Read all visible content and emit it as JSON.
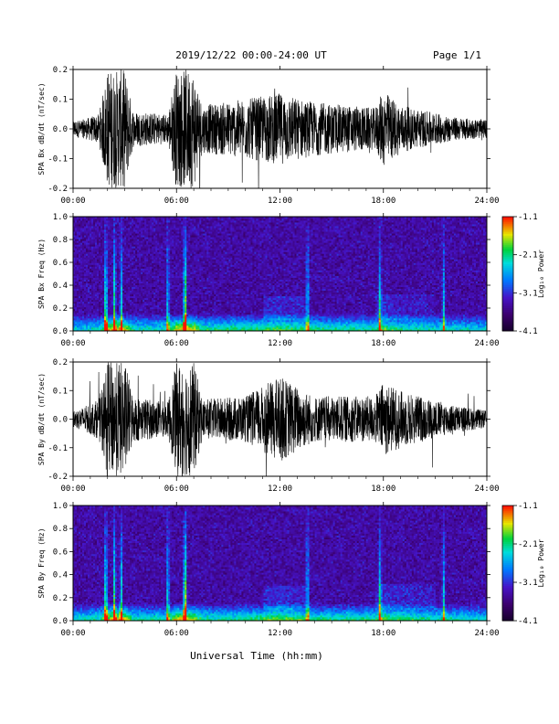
{
  "header": {
    "title": "2019/12/22  00:00-24:00 UT",
    "page": "Page 1/1"
  },
  "xlabel": "Universal Time (hh:mm)",
  "chart_data": [
    {
      "type": "line",
      "ylabel": "SPA Bx dB/dt (nT/sec)",
      "xlim": [
        0,
        24
      ],
      "ylim": [
        -0.2,
        0.2
      ],
      "xticks": [
        "00:00",
        "06:00",
        "12:00",
        "18:00",
        "24:00"
      ],
      "yticks": [
        "-0.2",
        "-0.1",
        "0.0",
        "0.1",
        "0.2"
      ],
      "envelope": [
        {
          "t": 0.0,
          "a": 0.03
        },
        {
          "t": 0.5,
          "a": 0.03
        },
        {
          "t": 1.5,
          "a": 0.05
        },
        {
          "t": 2.0,
          "a": 0.2
        },
        {
          "t": 3.0,
          "a": 0.2
        },
        {
          "t": 3.5,
          "a": 0.06
        },
        {
          "t": 5.5,
          "a": 0.05
        },
        {
          "t": 6.0,
          "a": 0.2
        },
        {
          "t": 7.0,
          "a": 0.2
        },
        {
          "t": 7.5,
          "a": 0.08
        },
        {
          "t": 10.0,
          "a": 0.1
        },
        {
          "t": 12.0,
          "a": 0.12
        },
        {
          "t": 14.0,
          "a": 0.09
        },
        {
          "t": 17.5,
          "a": 0.07
        },
        {
          "t": 18.0,
          "a": 0.13
        },
        {
          "t": 19.0,
          "a": 0.08
        },
        {
          "t": 22.0,
          "a": 0.04
        },
        {
          "t": 24.0,
          "a": 0.03
        }
      ]
    },
    {
      "type": "heatmap",
      "ylabel": "SPA Bx Freq (Hz)",
      "xlim": [
        0,
        24
      ],
      "ylim": [
        0,
        1.0
      ],
      "xticks": [
        "00:00",
        "06:00",
        "12:00",
        "18:00",
        "24:00"
      ],
      "yticks": [
        "0.0",
        "0.2",
        "0.4",
        "0.6",
        "0.8",
        "1.0"
      ],
      "colorbar": {
        "label": "Log₁₀ Power",
        "range": [
          -4.1,
          -1.1
        ],
        "ticks": [
          "-1.1",
          "-2.1",
          "-3.1",
          "-4.1"
        ]
      },
      "bright_bands": [
        {
          "t": 1.9,
          "level": 0.7
        },
        {
          "t": 2.4,
          "level": 0.6
        },
        {
          "t": 2.8,
          "level": 0.5
        },
        {
          "t": 5.5,
          "level": 0.5
        },
        {
          "t": 6.5,
          "level": 0.9
        },
        {
          "t": 13.6,
          "level": 0.5
        },
        {
          "t": 17.8,
          "level": 0.5
        },
        {
          "t": 21.5,
          "level": 0.4
        }
      ]
    },
    {
      "type": "line",
      "ylabel": "SPA By dB/dt (nT/sec)",
      "xlim": [
        0,
        24
      ],
      "ylim": [
        -0.2,
        0.2
      ],
      "xticks": [
        "00:00",
        "06:00",
        "12:00",
        "18:00",
        "24:00"
      ],
      "yticks": [
        "-0.2",
        "-0.1",
        "0.0",
        "0.1",
        "0.2"
      ],
      "envelope": [
        {
          "t": 0.0,
          "a": 0.03
        },
        {
          "t": 0.5,
          "a": 0.04
        },
        {
          "t": 1.5,
          "a": 0.07
        },
        {
          "t": 2.0,
          "a": 0.2
        },
        {
          "t": 3.0,
          "a": 0.2
        },
        {
          "t": 3.5,
          "a": 0.08
        },
        {
          "t": 5.5,
          "a": 0.06
        },
        {
          "t": 6.0,
          "a": 0.2
        },
        {
          "t": 7.0,
          "a": 0.2
        },
        {
          "t": 7.5,
          "a": 0.07
        },
        {
          "t": 10.0,
          "a": 0.08
        },
        {
          "t": 12.0,
          "a": 0.15
        },
        {
          "t": 14.0,
          "a": 0.08
        },
        {
          "t": 17.5,
          "a": 0.08
        },
        {
          "t": 18.0,
          "a": 0.13
        },
        {
          "t": 19.0,
          "a": 0.1
        },
        {
          "t": 22.0,
          "a": 0.05
        },
        {
          "t": 24.0,
          "a": 0.03
        }
      ]
    },
    {
      "type": "heatmap",
      "ylabel": "SPA By Freq (Hz)",
      "xlim": [
        0,
        24
      ],
      "ylim": [
        0,
        1.0
      ],
      "xticks": [
        "00:00",
        "06:00",
        "12:00",
        "18:00",
        "24:00"
      ],
      "yticks": [
        "0.0",
        "0.2",
        "0.4",
        "0.6",
        "0.8",
        "1.0"
      ],
      "colorbar": {
        "label": "Log₁₀ Power",
        "range": [
          -4.1,
          -1.1
        ],
        "ticks": [
          "-1.1",
          "-2.1",
          "-3.1",
          "-4.1"
        ]
      },
      "bright_bands": [
        {
          "t": 1.9,
          "level": 0.7
        },
        {
          "t": 2.4,
          "level": 0.6
        },
        {
          "t": 2.8,
          "level": 0.5
        },
        {
          "t": 5.5,
          "level": 0.5
        },
        {
          "t": 6.5,
          "level": 0.9
        },
        {
          "t": 13.6,
          "level": 0.5
        },
        {
          "t": 17.8,
          "level": 0.5
        },
        {
          "t": 21.5,
          "level": 0.4
        }
      ]
    }
  ]
}
